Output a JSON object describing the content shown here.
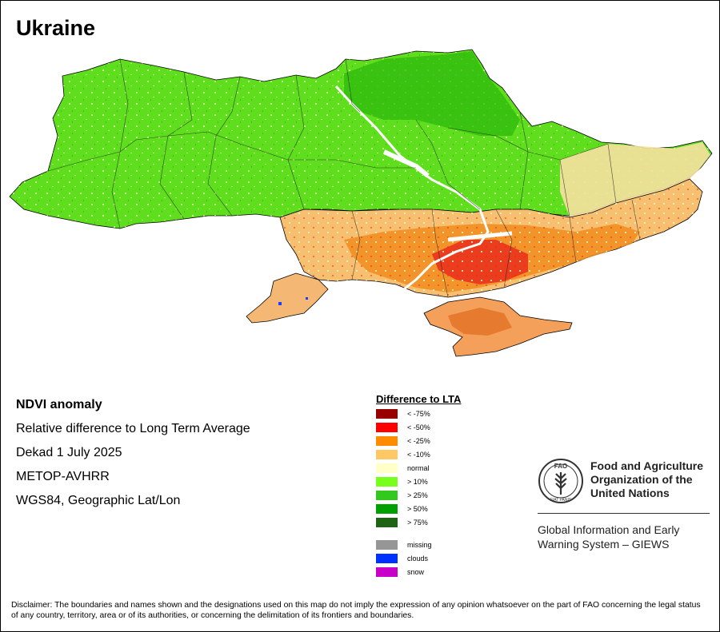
{
  "title": "Ukraine",
  "map": {
    "description_regions": [
      "north-west green",
      "north-east green",
      "south orange",
      "crimea orange"
    ],
    "colors": {
      "outline": "#000000",
      "green_light": "#66e61a",
      "green_mid": "#33cc00",
      "green_dark": "#1f8f0a",
      "normal": "#fdf6c8",
      "orange_light": "#f7c070",
      "orange": "#f28c1e",
      "red": "#e8261a",
      "dark_red": "#9a0a0a",
      "water": "#ffffff",
      "clouds": "#1a3cff"
    }
  },
  "info": {
    "heading": "NDVI anomaly",
    "line1": "Relative difference to Long Term Average",
    "line2": "Dekad 1 July 2025",
    "line3": "METOP-AVHRR",
    "line4": "WGS84, Geographic Lat/Lon"
  },
  "legend": {
    "title": "Difference to LTA",
    "items": [
      {
        "label": "< -75%",
        "color": "#990000"
      },
      {
        "label": "< -50%",
        "color": "#ff0000"
      },
      {
        "label": "< -25%",
        "color": "#ff8c00"
      },
      {
        "label": "< -10%",
        "color": "#ffc864"
      },
      {
        "label": "normal",
        "color": "#ffffc8"
      },
      {
        "label": "> 10%",
        "color": "#78ff1e"
      },
      {
        "label": "> 25%",
        "color": "#32c81e"
      },
      {
        "label": "> 50%",
        "color": "#00a000"
      },
      {
        "label": "> 75%",
        "color": "#1e6414"
      }
    ],
    "other_items": [
      {
        "label": "missing",
        "color": "#969696"
      },
      {
        "label": "clouds",
        "color": "#0032ff"
      },
      {
        "label": "snow",
        "color": "#c800c8"
      }
    ]
  },
  "fao": {
    "logo_text_top": "FAO",
    "logo_text_bottom": "FIAT PANIS",
    "org_name": "Food and Agriculture Organization of the United Nations",
    "program": "Global Information and Early Warning System – GIEWS",
    "logo_color": "#333333"
  },
  "disclaimer": "Disclaimer: The boundaries and names shown and the designations used on this map do not imply the expression of any opinion whatsoever on the part of FAO concerning the legal status of any country, territory, area or of its authorities, or concerning the delimitation of its frontiers and boundaries."
}
